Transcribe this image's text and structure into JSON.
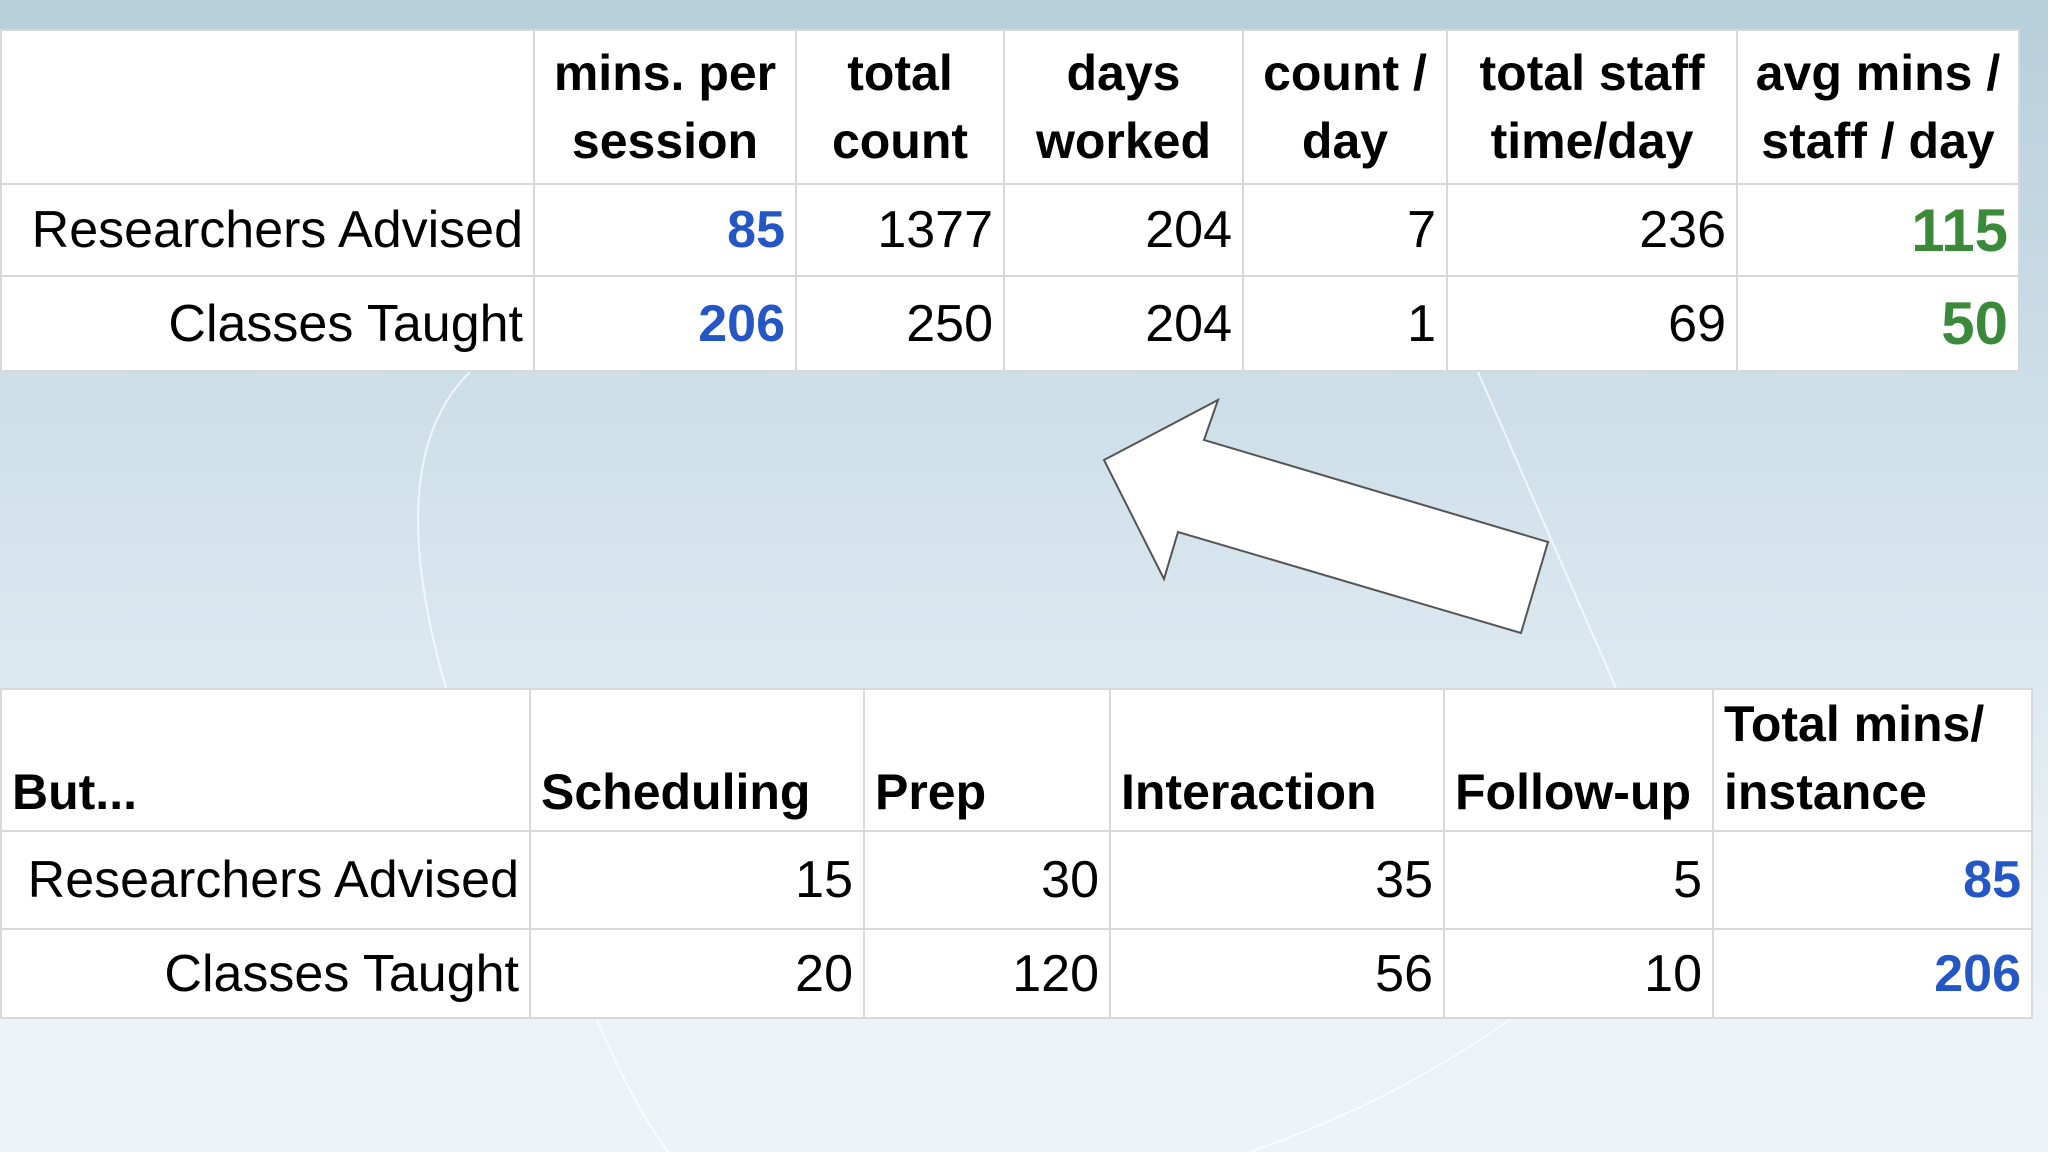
{
  "top_table": {
    "headers": [
      "mins. per session",
      "total count",
      "days worked",
      "count / day",
      "total staff time/day",
      "avg mins / staff / day"
    ],
    "rows": [
      {
        "label": "Researchers Advised",
        "values": [
          85,
          1377,
          204,
          7,
          236,
          115
        ]
      },
      {
        "label": "Classes Taught",
        "values": [
          206,
          250,
          204,
          1,
          69,
          50
        ]
      }
    ]
  },
  "bottom_table": {
    "corner": "But...",
    "headers": [
      "Scheduling",
      "Prep",
      "Interaction",
      "Follow-up",
      "Total mins/ instance"
    ],
    "rows": [
      {
        "label": "Researchers Advised",
        "values": [
          15,
          30,
          35,
          5,
          85
        ]
      },
      {
        "label": "Classes Taught",
        "values": [
          20,
          120,
          56,
          10,
          206
        ]
      }
    ]
  }
}
